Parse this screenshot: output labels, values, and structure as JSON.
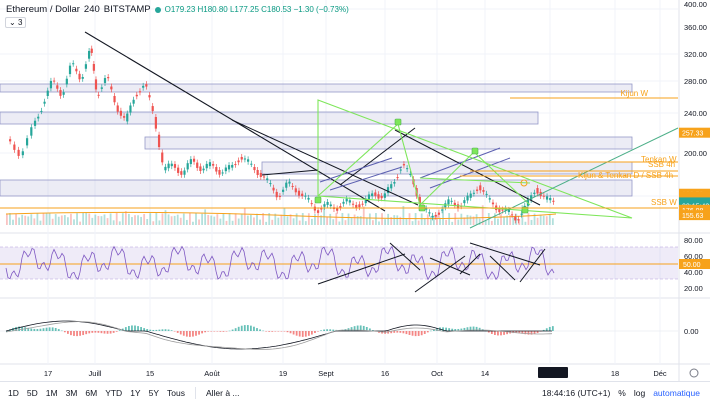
{
  "header": {
    "symbol": "Ethereum / Dollar",
    "interval": "240",
    "exchange": "BITSTAMP",
    "ohlc": "O179.23 H180.80 L177.25 C180.53 −1.30 (−0.73%)",
    "collapse_label": "3"
  },
  "colors": {
    "up": "#26a69a",
    "down": "#ef5350",
    "accent_orange": "#f7a21b",
    "trend_green": "#7ee65a",
    "rsi_purple": "#7e57c2",
    "zone_blue": "#9598c8"
  },
  "price_axis": {
    "labels": [
      "400.00",
      "360.00",
      "320.00",
      "280.00",
      "240.00",
      "200.00",
      "160.00"
    ],
    "badges": [
      {
        "text": "257.33",
        "color": "#f7a21b",
        "price": 257.33
      },
      {
        "text": "188.59",
        "color": "#f7a21b",
        "price": 188.59
      },
      {
        "text": "188.61",
        "color": "#f7a21b",
        "price": 185.4
      },
      {
        "text": "185.47",
        "color": "#f7a21b",
        "price": 182.1
      },
      {
        "text": "180.53",
        "color": "#26a69a",
        "price": 178.8
      },
      {
        "text": "02:15:42",
        "color": "#26a69a",
        "price": 175.5
      },
      {
        "text": "176.08",
        "color": "#f7a21b",
        "price": 170.5
      },
      {
        "text": "155.63",
        "color": "#f7a21b",
        "price": 164.5
      }
    ]
  },
  "annotations": {
    "kijun_w": "Kijun W",
    "tenkan_w": "Tenkan W",
    "ssb_4h": "SSB 4h",
    "kijun_tenkan_d": "Kijun & Tenkan D / SSB 4h",
    "ssb_w": "SSB W"
  },
  "rsi_axis": {
    "labels": [
      "80.00",
      "60.00",
      "40.00",
      "20.00"
    ],
    "badge": "50.00"
  },
  "macd_axis": {
    "labels": [
      "0.00"
    ]
  },
  "time_axis": {
    "labels": [
      "17",
      "Juill",
      "15",
      "Août",
      "19",
      "Sept",
      "16",
      "Oct",
      "14",
      "Nov",
      "18",
      "Déc"
    ]
  },
  "bottombar": {
    "timeframes": [
      "1D",
      "5D",
      "1M",
      "3M",
      "6M",
      "YTD",
      "1Y",
      "5Y",
      "Tous"
    ],
    "goto": "Aller à ...",
    "clock": "18:44:16 (UTC+1)",
    "percent": "%",
    "log": "log",
    "auto": "automatique"
  },
  "chart_data": {
    "type": "line",
    "title": "Ethereum / Dollar",
    "ylim": [
      150,
      400
    ],
    "price_series": [
      {
        "t": 0,
        "p": 250
      },
      {
        "t": 4,
        "p": 232
      },
      {
        "t": 8,
        "p": 265
      },
      {
        "t": 11,
        "p": 290
      },
      {
        "t": 14,
        "p": 316
      },
      {
        "t": 17,
        "p": 300
      },
      {
        "t": 20,
        "p": 335
      },
      {
        "t": 23,
        "p": 318
      },
      {
        "t": 26,
        "p": 352
      },
      {
        "t": 28,
        "p": 300
      },
      {
        "t": 31,
        "p": 320
      },
      {
        "t": 34,
        "p": 288
      },
      {
        "t": 37,
        "p": 270
      },
      {
        "t": 40,
        "p": 300
      },
      {
        "t": 43,
        "p": 312
      },
      {
        "t": 46,
        "p": 275
      },
      {
        "t": 49,
        "p": 215
      },
      {
        "t": 52,
        "p": 222
      },
      {
        "t": 55,
        "p": 210
      },
      {
        "t": 58,
        "p": 228
      },
      {
        "t": 61,
        "p": 215
      },
      {
        "t": 64,
        "p": 222
      },
      {
        "t": 67,
        "p": 212
      },
      {
        "t": 70,
        "p": 218
      },
      {
        "t": 73,
        "p": 230
      },
      {
        "t": 76,
        "p": 222
      },
      {
        "t": 79,
        "p": 212
      },
      {
        "t": 82,
        "p": 200
      },
      {
        "t": 85,
        "p": 186
      },
      {
        "t": 88,
        "p": 200
      },
      {
        "t": 91,
        "p": 192
      },
      {
        "t": 94,
        "p": 182
      },
      {
        "t": 97,
        "p": 170
      },
      {
        "t": 100,
        "p": 176
      },
      {
        "t": 103,
        "p": 172
      },
      {
        "t": 106,
        "p": 180
      },
      {
        "t": 109,
        "p": 176
      },
      {
        "t": 112,
        "p": 178
      },
      {
        "t": 115,
        "p": 190
      },
      {
        "t": 118,
        "p": 184
      },
      {
        "t": 121,
        "p": 200
      },
      {
        "t": 124,
        "p": 222
      },
      {
        "t": 127,
        "p": 205
      },
      {
        "t": 130,
        "p": 175
      },
      {
        "t": 133,
        "p": 162
      },
      {
        "t": 136,
        "p": 170
      },
      {
        "t": 139,
        "p": 180
      },
      {
        "t": 142,
        "p": 175
      },
      {
        "t": 145,
        "p": 184
      },
      {
        "t": 148,
        "p": 198
      },
      {
        "t": 151,
        "p": 182
      },
      {
        "t": 154,
        "p": 172
      },
      {
        "t": 157,
        "p": 168
      },
      {
        "t": 160,
        "p": 160
      },
      {
        "t": 163,
        "p": 175
      },
      {
        "t": 166,
        "p": 195
      },
      {
        "t": 169,
        "p": 182
      },
      {
        "t": 172,
        "p": 180
      }
    ],
    "x_domain": [
      0,
      172
    ]
  }
}
